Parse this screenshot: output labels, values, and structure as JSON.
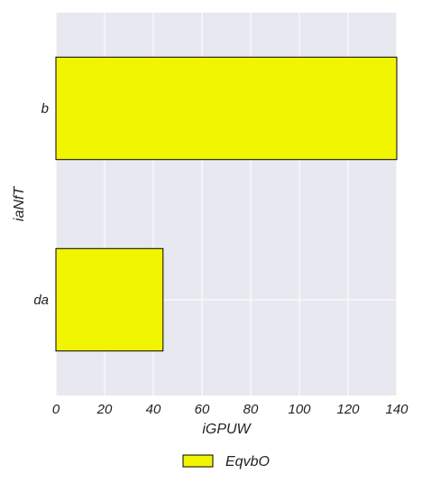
{
  "chart_data": {
    "type": "bar",
    "orientation": "horizontal",
    "categories": [
      "b",
      "da"
    ],
    "series": [
      {
        "name": "EqvbO",
        "values": [
          145,
          44
        ]
      }
    ],
    "xlabel": "iGPUW",
    "ylabel": "iaNfT",
    "xlim": [
      0,
      140
    ],
    "xticks": [
      0,
      20,
      40,
      60,
      80,
      100,
      120,
      140
    ],
    "grid": true,
    "legend_position": "bottom-center",
    "colors": {
      "bar": "#f2f500",
      "edge": "#000000",
      "plot_background": "#e8e8f0",
      "grid": "#ffffff"
    }
  }
}
